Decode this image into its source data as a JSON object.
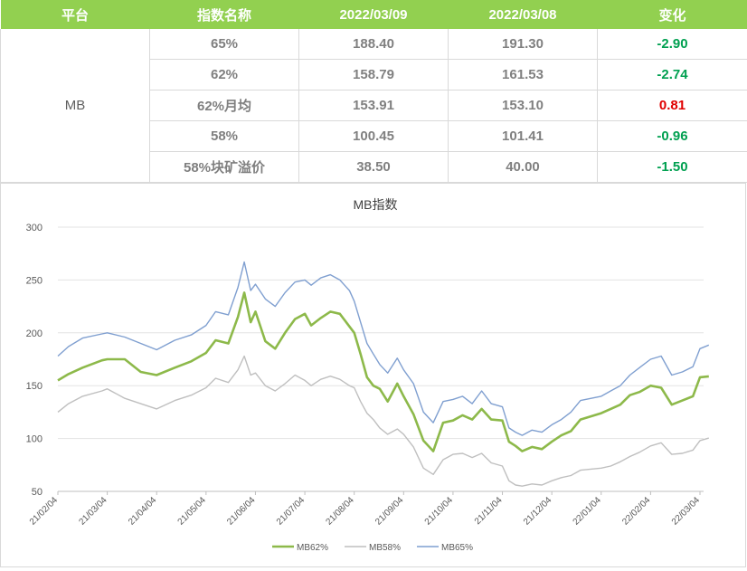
{
  "table": {
    "headers": [
      "平台",
      "指数名称",
      "2022/03/09",
      "2022/03/08",
      "变化"
    ],
    "platform": "MB",
    "rows": [
      {
        "name": "65%",
        "v1": "188.40",
        "v2": "191.30",
        "change": "-2.90",
        "dir": "neg"
      },
      {
        "name": "62%",
        "v1": "158.79",
        "v2": "161.53",
        "change": "-2.74",
        "dir": "neg"
      },
      {
        "name": "62%月均",
        "v1": "153.91",
        "v2": "153.10",
        "change": "0.81",
        "dir": "pos"
      },
      {
        "name": "58%",
        "v1": "100.45",
        "v2": "101.41",
        "change": "-0.96",
        "dir": "neg"
      },
      {
        "name": "58%块矿溢价",
        "v1": "38.50",
        "v2": "40.00",
        "change": "-1.50",
        "dir": "neg"
      }
    ],
    "colors": {
      "header_bg": "#92d050",
      "negative": "#00a050",
      "positive": "#e00000"
    }
  },
  "chart_data": {
    "type": "line",
    "title": "MB指数",
    "xlabel": "",
    "ylabel": "",
    "x_tick_labels": [
      "21/02/04",
      "21/03/04",
      "21/04/04",
      "21/05/04",
      "21/06/04",
      "21/07/04",
      "21/08/04",
      "21/09/04",
      "21/10/04",
      "21/11/04",
      "21/12/04",
      "22/01/04",
      "22/02/04",
      "22/03/04"
    ],
    "y_ticks": [
      50,
      100,
      150,
      200,
      250,
      300
    ],
    "ylim": [
      50,
      300
    ],
    "grid": "horizontal",
    "legend_position": "bottom",
    "series": [
      {
        "name": "MB62%",
        "color": "#8db94a",
        "points": [
          [
            "21/02/04",
            155
          ],
          [
            "21/02/10",
            161
          ],
          [
            "21/02/18",
            167
          ],
          [
            "21/03/01",
            174
          ],
          [
            "21/03/04",
            175
          ],
          [
            "21/03/15",
            175
          ],
          [
            "21/03/25",
            163
          ],
          [
            "21/04/04",
            160
          ],
          [
            "21/04/15",
            167
          ],
          [
            "21/04/25",
            173
          ],
          [
            "21/05/04",
            181
          ],
          [
            "21/05/10",
            193
          ],
          [
            "21/05/18",
            190
          ],
          [
            "21/05/24",
            215
          ],
          [
            "21/05/28",
            238
          ],
          [
            "21/06/01",
            210
          ],
          [
            "21/06/04",
            220
          ],
          [
            "21/06/10",
            192
          ],
          [
            "21/06/16",
            185
          ],
          [
            "21/06/22",
            200
          ],
          [
            "21/06/28",
            213
          ],
          [
            "21/07/04",
            218
          ],
          [
            "21/07/08",
            207
          ],
          [
            "21/07/14",
            214
          ],
          [
            "21/07/20",
            220
          ],
          [
            "21/07/26",
            218
          ],
          [
            "21/08/01",
            206
          ],
          [
            "21/08/04",
            200
          ],
          [
            "21/08/08",
            180
          ],
          [
            "21/08/12",
            158
          ],
          [
            "21/08/16",
            150
          ],
          [
            "21/08/20",
            147
          ],
          [
            "21/08/25",
            135
          ],
          [
            "21/08/31",
            152
          ],
          [
            "21/09/04",
            140
          ],
          [
            "21/09/10",
            123
          ],
          [
            "21/09/16",
            98
          ],
          [
            "21/09/22",
            88
          ],
          [
            "21/09/28",
            115
          ],
          [
            "21/10/04",
            117
          ],
          [
            "21/10/10",
            122
          ],
          [
            "21/10/16",
            118
          ],
          [
            "21/10/22",
            128
          ],
          [
            "21/10/28",
            118
          ],
          [
            "21/11/04",
            117
          ],
          [
            "21/11/08",
            97
          ],
          [
            "21/11/12",
            93
          ],
          [
            "21/11/16",
            88
          ],
          [
            "21/11/22",
            92
          ],
          [
            "21/11/28",
            90
          ],
          [
            "21/12/04",
            97
          ],
          [
            "21/12/10",
            103
          ],
          [
            "21/12/16",
            107
          ],
          [
            "21/12/22",
            118
          ],
          [
            "22/01/04",
            124
          ],
          [
            "22/01/10",
            128
          ],
          [
            "22/01/16",
            132
          ],
          [
            "22/01/22",
            141
          ],
          [
            "22/01/28",
            144
          ],
          [
            "22/02/04",
            150
          ],
          [
            "22/02/10",
            148
          ],
          [
            "22/02/16",
            132
          ],
          [
            "22/02/22",
            136
          ],
          [
            "22/02/28",
            140
          ],
          [
            "22/03/04",
            158
          ],
          [
            "22/03/09",
            158.79
          ]
        ]
      },
      {
        "name": "MB58%",
        "color": "#bfbfbf",
        "points": [
          [
            "21/02/04",
            125
          ],
          [
            "21/02/10",
            133
          ],
          [
            "21/02/18",
            140
          ],
          [
            "21/03/01",
            145
          ],
          [
            "21/03/04",
            147
          ],
          [
            "21/03/15",
            138
          ],
          [
            "21/03/25",
            133
          ],
          [
            "21/04/04",
            128
          ],
          [
            "21/04/15",
            136
          ],
          [
            "21/04/25",
            141
          ],
          [
            "21/05/04",
            148
          ],
          [
            "21/05/10",
            157
          ],
          [
            "21/05/18",
            153
          ],
          [
            "21/05/24",
            165
          ],
          [
            "21/05/28",
            178
          ],
          [
            "21/06/01",
            160
          ],
          [
            "21/06/04",
            162
          ],
          [
            "21/06/10",
            150
          ],
          [
            "21/06/16",
            145
          ],
          [
            "21/06/22",
            152
          ],
          [
            "21/06/28",
            160
          ],
          [
            "21/07/04",
            155
          ],
          [
            "21/07/08",
            150
          ],
          [
            "21/07/14",
            156
          ],
          [
            "21/07/20",
            159
          ],
          [
            "21/07/26",
            156
          ],
          [
            "21/08/01",
            150
          ],
          [
            "21/08/04",
            148
          ],
          [
            "21/08/08",
            135
          ],
          [
            "21/08/12",
            124
          ],
          [
            "21/08/16",
            118
          ],
          [
            "21/08/20",
            110
          ],
          [
            "21/08/25",
            104
          ],
          [
            "21/08/31",
            109
          ],
          [
            "21/09/04",
            104
          ],
          [
            "21/09/10",
            92
          ],
          [
            "21/09/16",
            72
          ],
          [
            "21/09/22",
            66
          ],
          [
            "21/09/28",
            80
          ],
          [
            "21/10/04",
            85
          ],
          [
            "21/10/10",
            86
          ],
          [
            "21/10/16",
            82
          ],
          [
            "21/10/22",
            86
          ],
          [
            "21/10/28",
            77
          ],
          [
            "21/11/04",
            74
          ],
          [
            "21/11/08",
            60
          ],
          [
            "21/11/12",
            56
          ],
          [
            "21/11/16",
            55
          ],
          [
            "21/11/22",
            57
          ],
          [
            "21/11/28",
            56
          ],
          [
            "21/12/04",
            60
          ],
          [
            "21/12/10",
            63
          ],
          [
            "21/12/16",
            65
          ],
          [
            "21/12/22",
            70
          ],
          [
            "22/01/04",
            72
          ],
          [
            "22/01/10",
            74
          ],
          [
            "22/01/16",
            78
          ],
          [
            "22/01/22",
            83
          ],
          [
            "22/01/28",
            87
          ],
          [
            "22/02/04",
            93
          ],
          [
            "22/02/10",
            96
          ],
          [
            "22/02/16",
            85
          ],
          [
            "22/02/22",
            86
          ],
          [
            "22/02/28",
            89
          ],
          [
            "22/03/04",
            98
          ],
          [
            "22/03/09",
            100.45
          ]
        ]
      },
      {
        "name": "MB65%",
        "color": "#7f9fd0",
        "points": [
          [
            "21/02/04",
            178
          ],
          [
            "21/02/10",
            187
          ],
          [
            "21/02/18",
            195
          ],
          [
            "21/03/01",
            199
          ],
          [
            "21/03/04",
            200
          ],
          [
            "21/03/15",
            196
          ],
          [
            "21/03/25",
            190
          ],
          [
            "21/04/04",
            184
          ],
          [
            "21/04/15",
            193
          ],
          [
            "21/04/25",
            198
          ],
          [
            "21/05/04",
            207
          ],
          [
            "21/05/10",
            220
          ],
          [
            "21/05/18",
            217
          ],
          [
            "21/05/24",
            243
          ],
          [
            "21/05/28",
            267
          ],
          [
            "21/06/01",
            240
          ],
          [
            "21/06/04",
            246
          ],
          [
            "21/06/10",
            232
          ],
          [
            "21/06/16",
            225
          ],
          [
            "21/06/22",
            238
          ],
          [
            "21/06/28",
            248
          ],
          [
            "21/07/04",
            250
          ],
          [
            "21/07/08",
            245
          ],
          [
            "21/07/14",
            252
          ],
          [
            "21/07/20",
            255
          ],
          [
            "21/07/26",
            250
          ],
          [
            "21/08/01",
            240
          ],
          [
            "21/08/04",
            230
          ],
          [
            "21/08/08",
            210
          ],
          [
            "21/08/12",
            190
          ],
          [
            "21/08/16",
            180
          ],
          [
            "21/08/20",
            170
          ],
          [
            "21/08/25",
            162
          ],
          [
            "21/08/31",
            176
          ],
          [
            "21/09/04",
            165
          ],
          [
            "21/09/10",
            152
          ],
          [
            "21/09/16",
            125
          ],
          [
            "21/09/22",
            115
          ],
          [
            "21/09/28",
            135
          ],
          [
            "21/10/04",
            137
          ],
          [
            "21/10/10",
            140
          ],
          [
            "21/10/16",
            133
          ],
          [
            "21/10/22",
            145
          ],
          [
            "21/10/28",
            133
          ],
          [
            "21/11/04",
            130
          ],
          [
            "21/11/08",
            110
          ],
          [
            "21/11/12",
            106
          ],
          [
            "21/11/16",
            103
          ],
          [
            "21/11/22",
            108
          ],
          [
            "21/11/28",
            106
          ],
          [
            "21/12/04",
            113
          ],
          [
            "21/12/10",
            118
          ],
          [
            "21/12/16",
            125
          ],
          [
            "21/12/22",
            136
          ],
          [
            "22/01/04",
            140
          ],
          [
            "22/01/10",
            145
          ],
          [
            "22/01/16",
            150
          ],
          [
            "22/01/22",
            160
          ],
          [
            "22/01/28",
            167
          ],
          [
            "22/02/04",
            175
          ],
          [
            "22/02/10",
            178
          ],
          [
            "22/02/16",
            160
          ],
          [
            "22/02/22",
            163
          ],
          [
            "22/02/28",
            168
          ],
          [
            "22/03/04",
            185
          ],
          [
            "22/03/09",
            188.4
          ]
        ]
      }
    ]
  }
}
